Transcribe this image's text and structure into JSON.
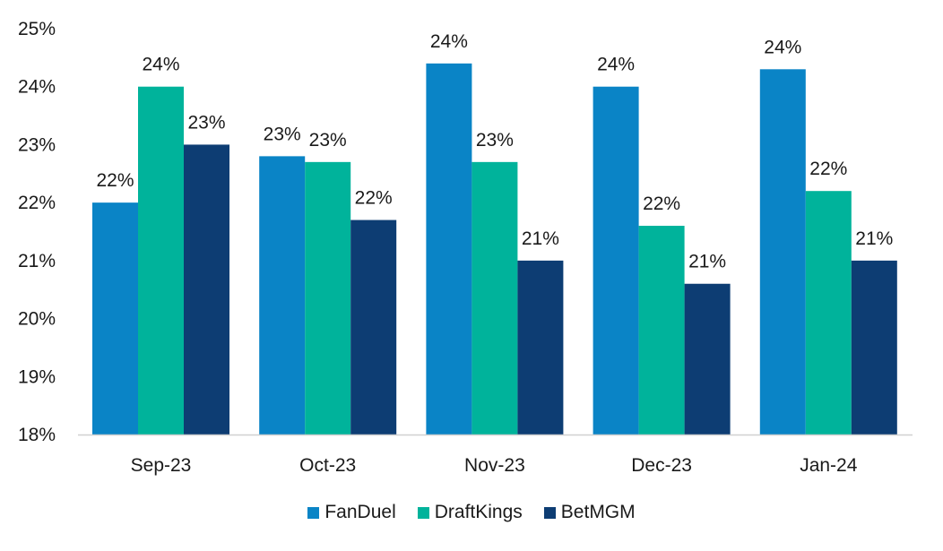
{
  "chart_data": {
    "type": "bar",
    "title": "",
    "xlabel": "",
    "ylabel": "",
    "ylim": [
      18,
      25
    ],
    "yticks": [
      "18%",
      "19%",
      "20%",
      "21%",
      "22%",
      "23%",
      "24%",
      "25%"
    ],
    "ytick_values": [
      18,
      19,
      20,
      21,
      22,
      23,
      24,
      25
    ],
    "grid": false,
    "legend_position": "bottom",
    "categories": [
      "Sep-23",
      "Oct-23",
      "Nov-23",
      "Dec-23",
      "Jan-24"
    ],
    "series": [
      {
        "name": "FanDuel",
        "color": "#0A84C6",
        "values": [
          22.0,
          22.8,
          24.4,
          24.0,
          24.3
        ],
        "labels": [
          "22%",
          "23%",
          "24%",
          "24%",
          "24%"
        ]
      },
      {
        "name": "DraftKings",
        "color": "#00B39B",
        "values": [
          24.0,
          22.7,
          22.7,
          21.6,
          22.2
        ],
        "labels": [
          "24%",
          "23%",
          "23%",
          "22%",
          "22%"
        ]
      },
      {
        "name": "BetMGM",
        "color": "#0D3D73",
        "values": [
          23.0,
          21.7,
          21.0,
          20.6,
          21.0
        ],
        "labels": [
          "23%",
          "22%",
          "21%",
          "21%",
          "21%"
        ]
      }
    ]
  }
}
